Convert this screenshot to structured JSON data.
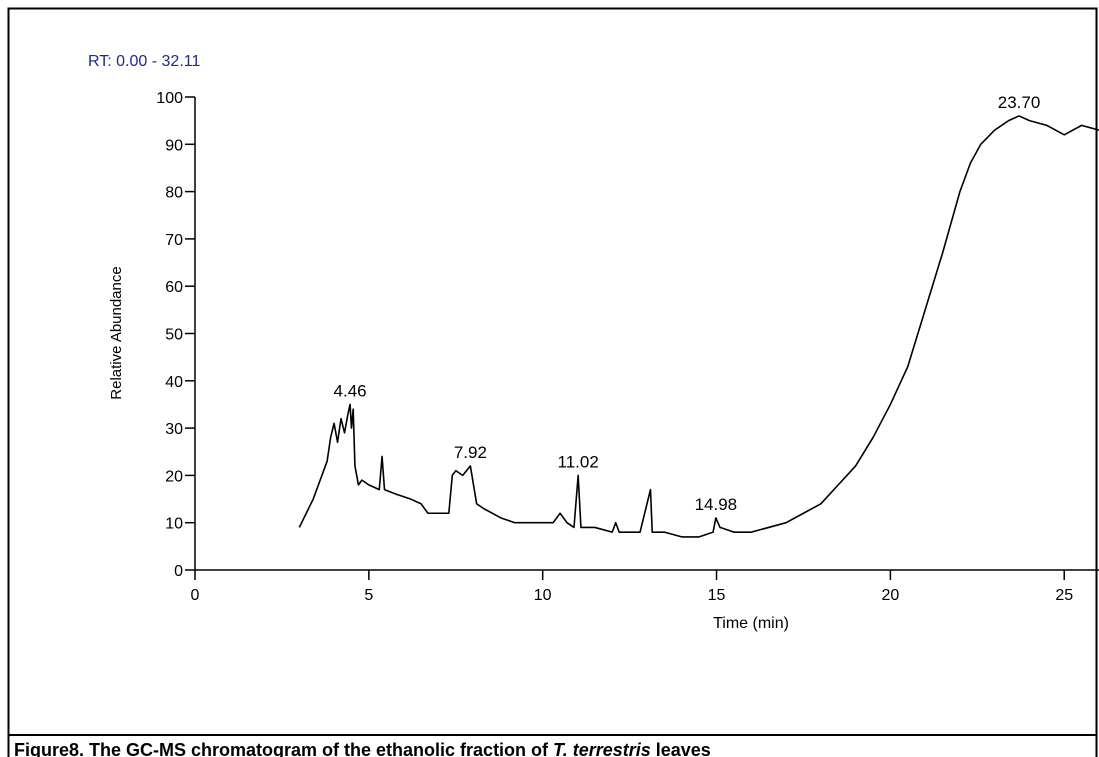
{
  "chart_data": {
    "type": "line",
    "header": "RT: 0.00 - 32.11",
    "ylabel": "Relative Abundance",
    "xlabel": "Time (min)",
    "color": "#000000",
    "x": [
      3.0,
      3.2,
      3.4,
      3.6,
      3.8,
      3.9,
      4.0,
      4.1,
      4.2,
      4.3,
      4.4,
      4.46,
      4.5,
      4.55,
      4.6,
      4.7,
      4.8,
      5.0,
      5.3,
      5.38,
      5.45,
      5.8,
      6.2,
      6.5,
      6.7,
      7.0,
      7.3,
      7.4,
      7.5,
      7.7,
      7.92,
      8.1,
      8.3,
      8.8,
      9.2,
      9.6,
      10.0,
      10.3,
      10.5,
      10.7,
      10.9,
      11.02,
      11.1,
      11.5,
      12.0,
      12.1,
      12.2,
      12.8,
      13.1,
      13.15,
      13.5,
      14.0,
      14.5,
      14.9,
      14.98,
      15.1,
      15.5,
      16.0,
      16.5,
      17.0,
      17.5,
      18.0,
      18.5,
      19.0,
      19.5,
      20.0,
      20.5,
      21.0,
      21.5,
      22.0,
      22.3,
      22.6,
      23.0,
      23.4,
      23.7,
      24.0,
      24.5,
      25.0,
      25.5,
      26.0
    ],
    "values": [
      9,
      12,
      15,
      19,
      23,
      28,
      31,
      27,
      32,
      29,
      33,
      35,
      30,
      34,
      22,
      18,
      19,
      18,
      17,
      24,
      17,
      16,
      15,
      14,
      12,
      12,
      12,
      20,
      21,
      20,
      22,
      14,
      13,
      11,
      10,
      10,
      10,
      10,
      12,
      10,
      9,
      20,
      9,
      9,
      8,
      10,
      8,
      8,
      17,
      8,
      8,
      7,
      7,
      8,
      11,
      9,
      8,
      8,
      9,
      10,
      12,
      14,
      18,
      22,
      28,
      35,
      43,
      55,
      67,
      80,
      86,
      90,
      93,
      95,
      96,
      95,
      94,
      92,
      94,
      93
    ],
    "annotations": [
      {
        "text": "4.46",
        "x": 4.46,
        "y": 35
      },
      {
        "text": "7.92",
        "x": 7.92,
        "y": 22
      },
      {
        "text": "11.02",
        "x": 11.02,
        "y": 20
      },
      {
        "text": "14.98",
        "x": 14.98,
        "y": 11
      },
      {
        "text": "23.70",
        "x": 23.7,
        "y": 96
      }
    ],
    "xlim": [
      0,
      26
    ],
    "xticks": [
      0,
      5,
      10,
      15,
      20,
      25
    ],
    "ylim": [
      0,
      100
    ],
    "yticks": [
      0,
      10,
      20,
      30,
      40,
      50,
      60,
      70,
      80,
      90,
      100
    ],
    "caption": {
      "prefix": "Figure8. The GC-MS chromatogram of the ethanolic fraction of ",
      "italic": "T. terrestris",
      "suffix": " leaves"
    }
  }
}
